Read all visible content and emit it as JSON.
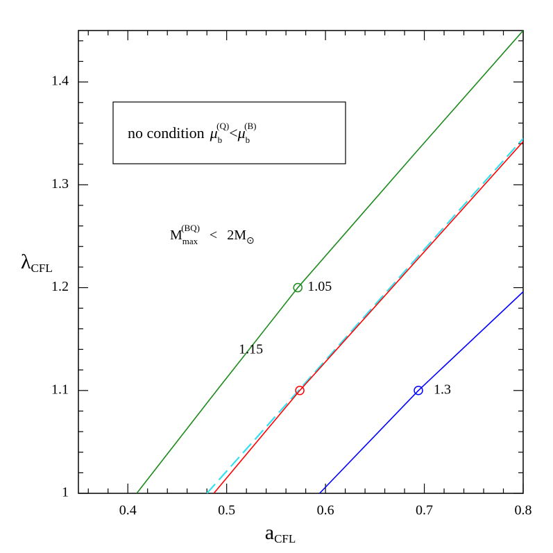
{
  "chart_data": {
    "type": "line",
    "xlabel": {
      "text": "a",
      "sub": "CFL"
    },
    "ylabel": {
      "text": "λ",
      "sub": "CFL"
    },
    "xlim": [
      0.35,
      0.8
    ],
    "ylim": [
      1,
      1.45
    ],
    "xticks": [
      0.4,
      0.5,
      0.6,
      0.7,
      0.8
    ],
    "yticks": [
      1,
      1.1,
      1.2,
      1.3,
      1.4
    ],
    "xminor": [
      0.36,
      0.38,
      0.42,
      0.44,
      0.46,
      0.48,
      0.52,
      0.54,
      0.56,
      0.58,
      0.62,
      0.64,
      0.66,
      0.68,
      0.72,
      0.74,
      0.76,
      0.78
    ],
    "yminor": [
      1.02,
      1.04,
      1.06,
      1.08,
      1.12,
      1.14,
      1.16,
      1.18,
      1.22,
      1.24,
      1.26,
      1.28,
      1.32,
      1.34,
      1.36,
      1.38,
      1.42,
      1.44
    ],
    "series": [
      {
        "name": "1.05",
        "color": "#1a8a1a",
        "dash": false,
        "x": [
          0.409,
          0.49,
          0.572,
          0.69,
          0.8
        ],
        "values": [
          1.0,
          1.1,
          1.2,
          1.33,
          1.45
        ],
        "marker_x": 0.572,
        "marker_y": 1.2
      },
      {
        "color": "#33e0f0",
        "dash": true,
        "x": [
          0.48,
          0.8
        ],
        "values": [
          1.0,
          1.345
        ]
      },
      {
        "name": "1.15",
        "color": "#ff0000",
        "dash": false,
        "x": [
          0.487,
          0.574,
          0.8
        ],
        "values": [
          1.0,
          1.1,
          1.342
        ],
        "marker_x": 0.574,
        "marker_y": 1.1
      },
      {
        "name": "1.3",
        "color": "#0000ff",
        "dash": false,
        "x": [
          0.594,
          0.694,
          0.8
        ],
        "values": [
          1.0,
          1.1,
          1.196
        ],
        "marker_x": 0.694,
        "marker_y": 1.1
      }
    ],
    "box_text": [
      "no condition",
      "μ",
      "b",
      "(Q)",
      "<",
      "μ",
      "b",
      "(B)"
    ],
    "mass_text": [
      "M",
      "max",
      "(BQ)",
      "<",
      "2M",
      "⊙"
    ]
  }
}
